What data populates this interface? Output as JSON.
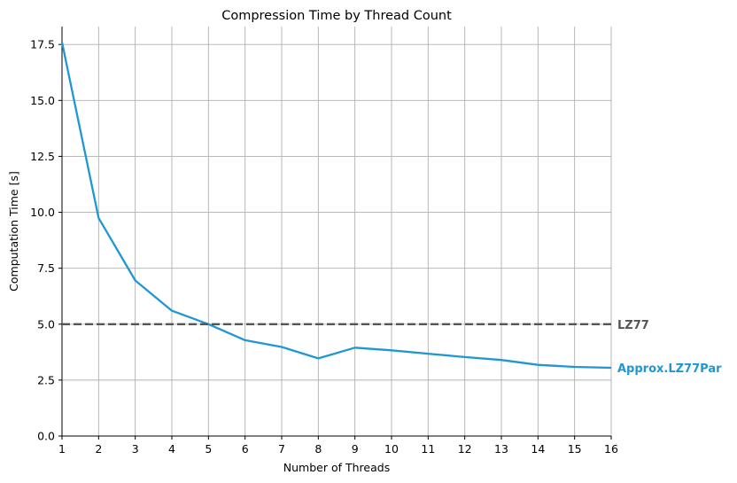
{
  "chart_data": {
    "type": "line",
    "title": "Compression Time by Thread Count",
    "xlabel": "Number of Threads",
    "ylabel": "Computation Time [s]",
    "xlim": [
      1,
      16
    ],
    "ylim": [
      0,
      18.3
    ],
    "xticks": [
      1,
      2,
      3,
      4,
      5,
      6,
      7,
      8,
      9,
      10,
      11,
      12,
      13,
      14,
      15,
      16
    ],
    "yticks": [
      "0.0",
      "2.5",
      "5.0",
      "7.5",
      "10.0",
      "12.5",
      "15.0",
      "17.5"
    ],
    "grid": true,
    "series": [
      {
        "name": "Approx.LZ77Par",
        "color": "#1f97d2",
        "style": "solid",
        "x": [
          1,
          2,
          3,
          4,
          5,
          6,
          7,
          8,
          9,
          10,
          11,
          12,
          13,
          14,
          15,
          16
        ],
        "y": [
          17.6,
          9.75,
          6.95,
          5.6,
          5.0,
          4.28,
          3.98,
          3.47,
          3.95,
          3.83,
          3.68,
          3.53,
          3.4,
          3.18,
          3.09,
          3.05
        ]
      },
      {
        "name": "LZ77",
        "color": "#555555",
        "style": "dashed",
        "x": [
          1,
          16
        ],
        "y": [
          5.0,
          5.0
        ]
      }
    ]
  }
}
